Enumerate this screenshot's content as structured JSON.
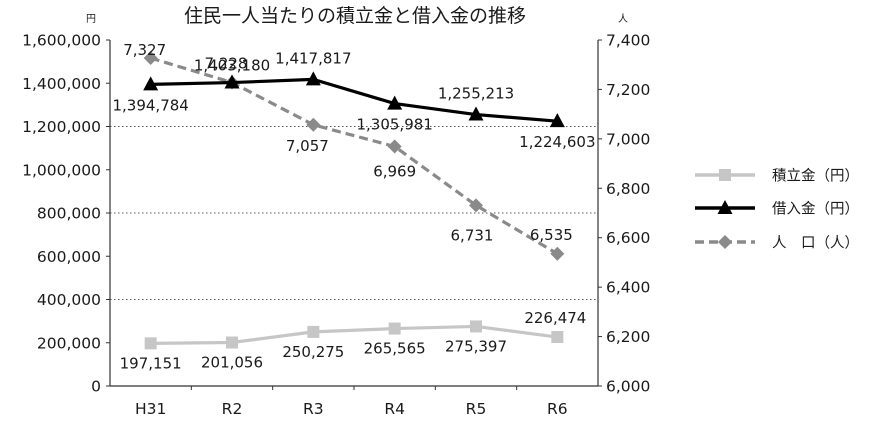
{
  "chart_data": {
    "type": "line",
    "title": "住民一人当たりの積立金と借入金の推移",
    "categories": [
      "H31",
      "R2",
      "R3",
      "R4",
      "R5",
      "R6"
    ],
    "left_axis": {
      "unit": "円",
      "ylim": [
        0,
        1600000
      ],
      "ticks": [
        "0",
        "200,000",
        "400,000",
        "600,000",
        "800,000",
        "1,000,000",
        "1,200,000",
        "1,400,000",
        "1,600,000"
      ]
    },
    "right_axis": {
      "unit": "人",
      "ylim": [
        6000,
        7400
      ],
      "ticks": [
        "6,000",
        "6,200",
        "6,400",
        "6,600",
        "6,800",
        "7,000",
        "7,200",
        "7,400"
      ]
    },
    "grid": "dotted at 400,000 / 800,000 / 1,200,000",
    "legend_position": "right",
    "series": [
      {
        "name": "積立金（円）",
        "axis": "left",
        "color": "#c6c6c6",
        "marker": "square",
        "dash": "solid",
        "values": [
          197151,
          201056,
          250275,
          265565,
          275397,
          226474
        ],
        "labels": [
          "197,151",
          "201,056",
          "250,275",
          "265,565",
          "275,397",
          "226,474"
        ]
      },
      {
        "name": "借入金（円）",
        "axis": "left",
        "color": "#000000",
        "marker": "triangle",
        "dash": "solid",
        "values": [
          1394784,
          1403180,
          1417817,
          1305981,
          1255213,
          1224603
        ],
        "labels": [
          "1,394,784",
          "1,403,180",
          "1,417,817",
          "1,305,981",
          "1,255,213",
          "1,224,603"
        ]
      },
      {
        "name": "人　口（人）",
        "axis": "right",
        "color": "#8a8a8a",
        "marker": "diamond",
        "dash": "dashed",
        "values": [
          7327,
          7228,
          7057,
          6969,
          6731,
          6535
        ],
        "labels": [
          "7,327",
          "7,228",
          "7,057",
          "6,969",
          "6,731",
          "6,535"
        ]
      }
    ]
  }
}
